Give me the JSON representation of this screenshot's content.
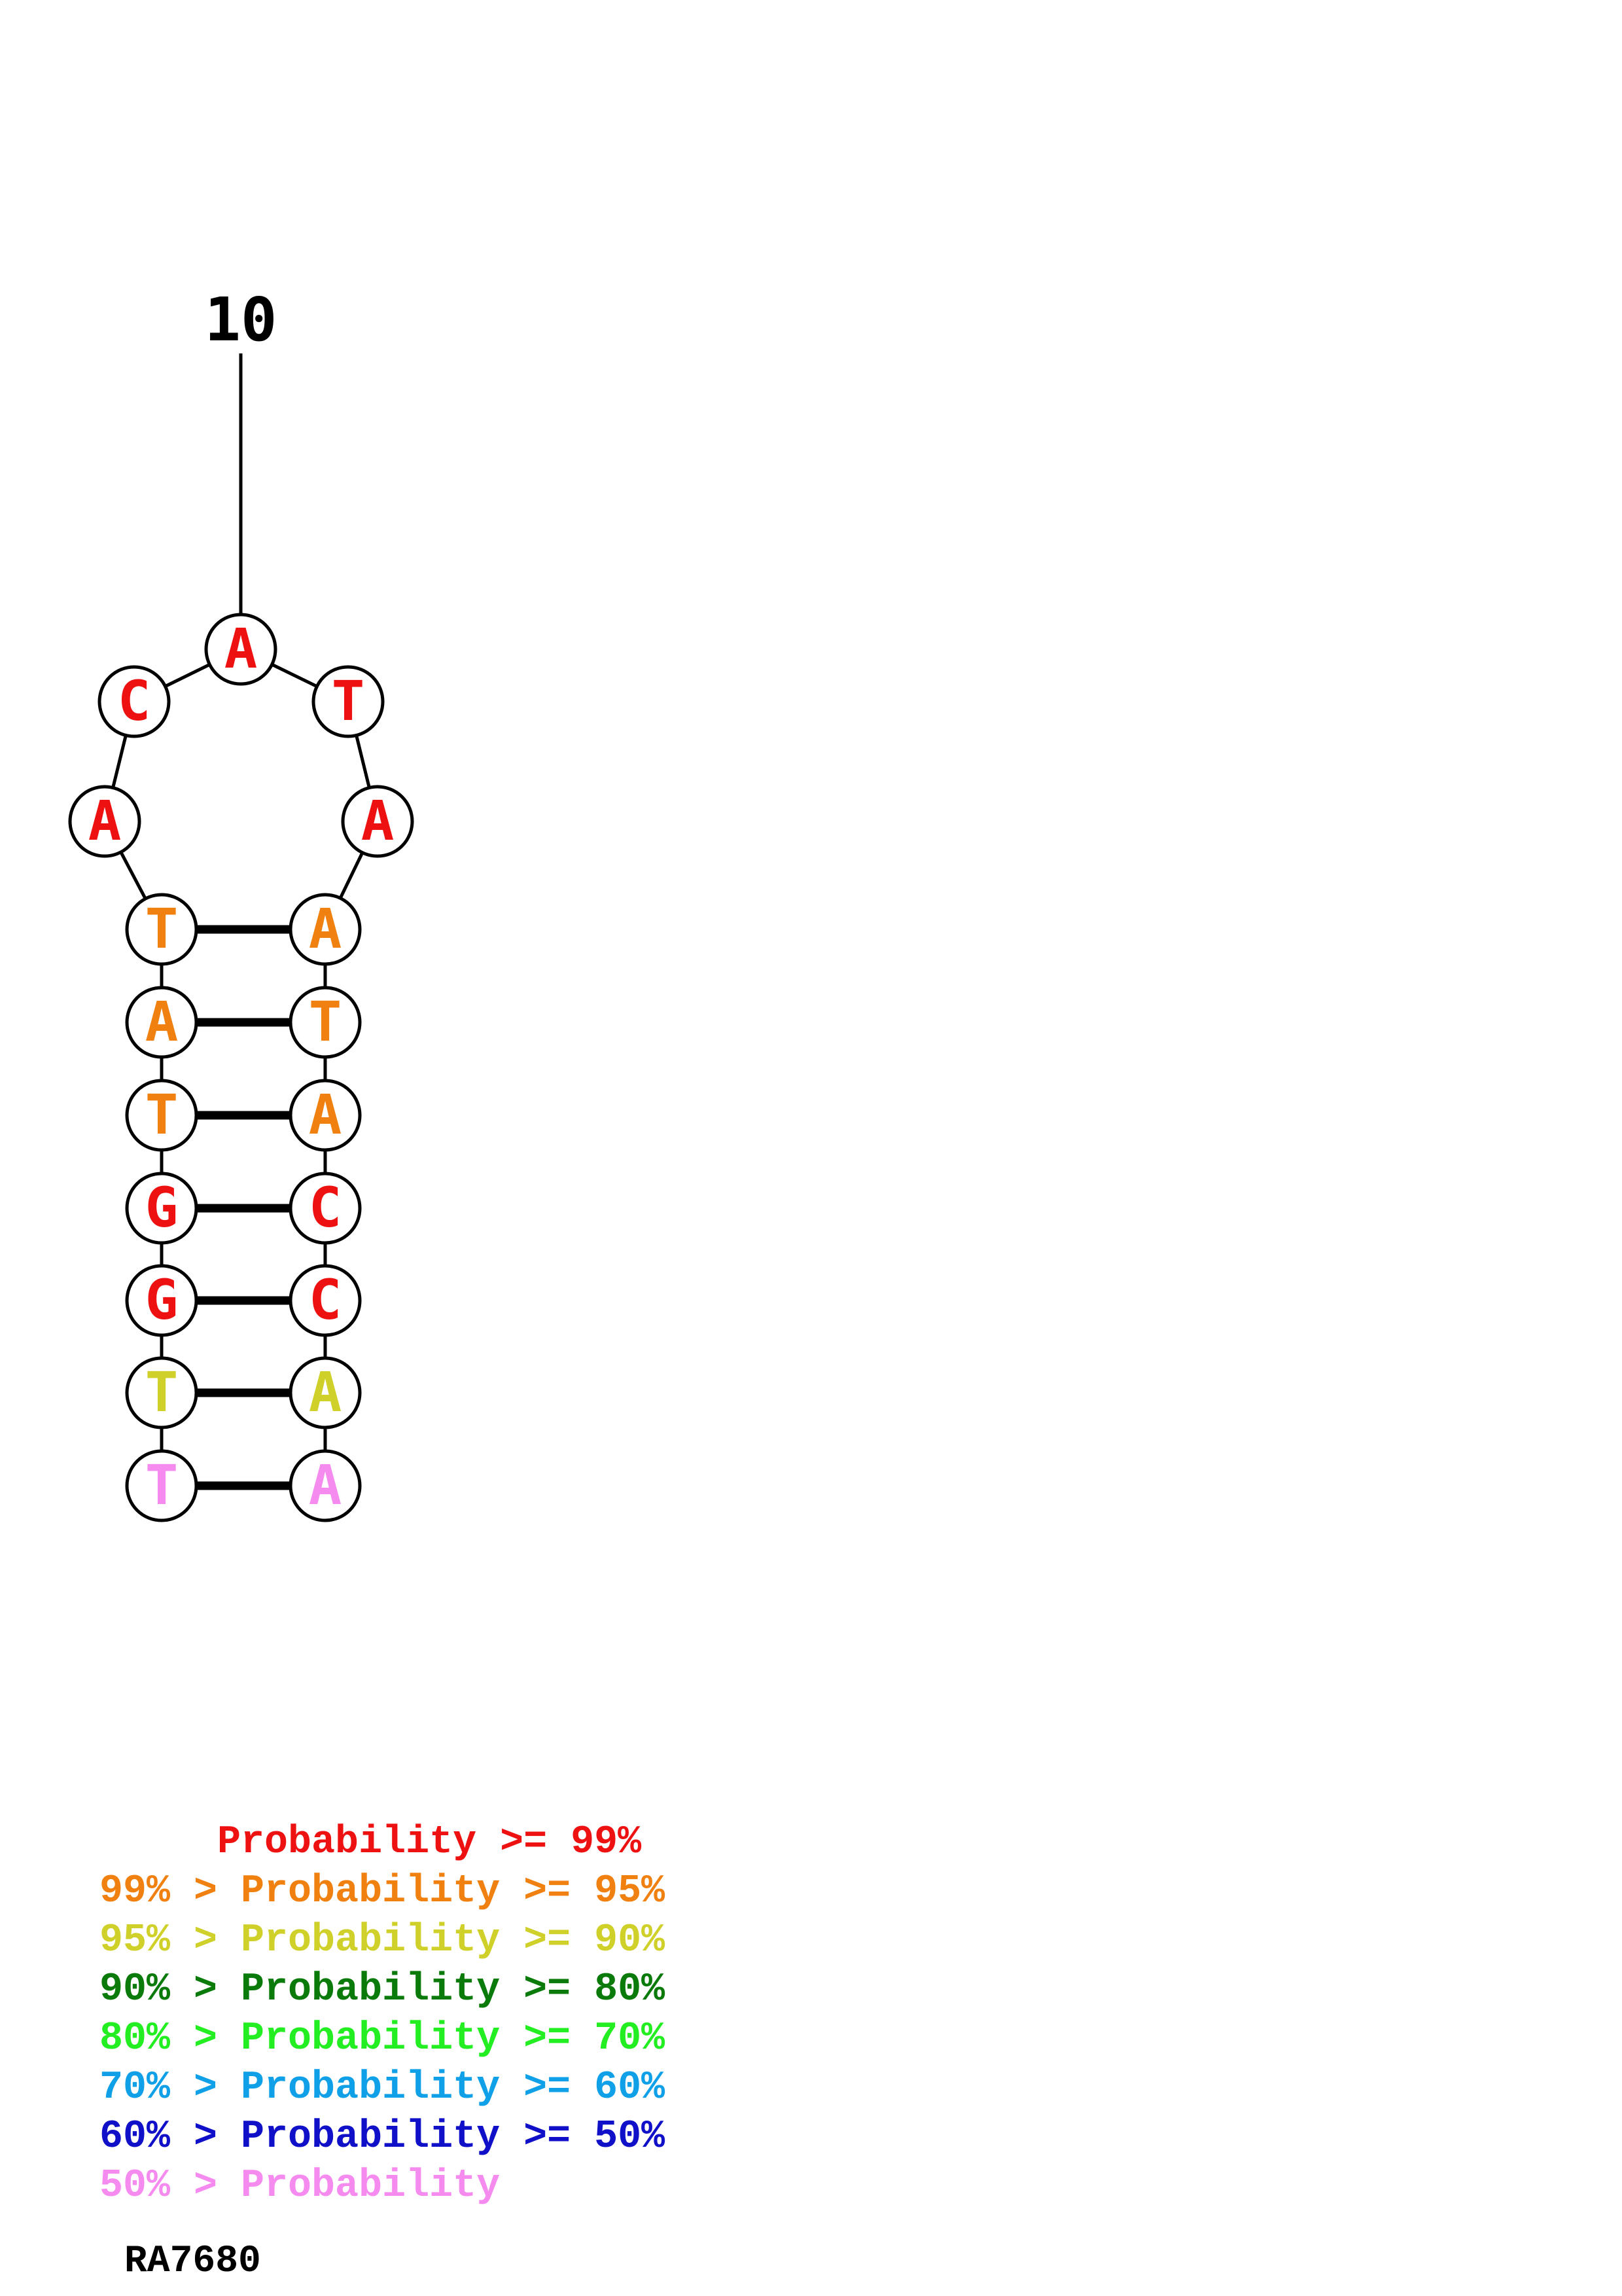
{
  "structure": {
    "position_label": "10",
    "nucleotides": [
      {
        "letter": "T",
        "color": "#f58bef"
      },
      {
        "letter": "T",
        "color": "#d0d02a"
      },
      {
        "letter": "G",
        "color": "#ee1111"
      },
      {
        "letter": "G",
        "color": "#ee1111"
      },
      {
        "letter": "T",
        "color": "#f08010"
      },
      {
        "letter": "A",
        "color": "#f08010"
      },
      {
        "letter": "T",
        "color": "#f08010"
      },
      {
        "letter": "A",
        "color": "#ee1111"
      },
      {
        "letter": "C",
        "color": "#ee1111"
      },
      {
        "letter": "A",
        "color": "#ee1111"
      },
      {
        "letter": "T",
        "color": "#ee1111"
      },
      {
        "letter": "A",
        "color": "#ee1111"
      },
      {
        "letter": "A",
        "color": "#f08010"
      },
      {
        "letter": "T",
        "color": "#f08010"
      },
      {
        "letter": "A",
        "color": "#f08010"
      },
      {
        "letter": "C",
        "color": "#ee1111"
      },
      {
        "letter": "C",
        "color": "#ee1111"
      },
      {
        "letter": "A",
        "color": "#d0d02a"
      },
      {
        "letter": "A",
        "color": "#f58bef"
      }
    ],
    "pairs": [
      [
        1,
        19
      ],
      [
        2,
        18
      ],
      [
        3,
        17
      ],
      [
        4,
        16
      ],
      [
        5,
        15
      ],
      [
        6,
        14
      ],
      [
        7,
        13
      ]
    ]
  },
  "legend": [
    {
      "text": "     Probability >= 99%",
      "color": "#ee1111"
    },
    {
      "text": "99% > Probability >= 95%",
      "color": "#f08010"
    },
    {
      "text": "95% > Probability >= 90%",
      "color": "#d0d02a"
    },
    {
      "text": "90% > Probability >= 80%",
      "color": "#0a7a0a"
    },
    {
      "text": "80% > Probability >= 70%",
      "color": "#22ee22"
    },
    {
      "text": "70% > Probability >= 60%",
      "color": "#10a0e8"
    },
    {
      "text": "60% > Probability >= 50%",
      "color": "#1010c8"
    },
    {
      "text": "50% > Probability",
      "color": "#f58bef"
    }
  ],
  "molecule_name": "RA7680"
}
